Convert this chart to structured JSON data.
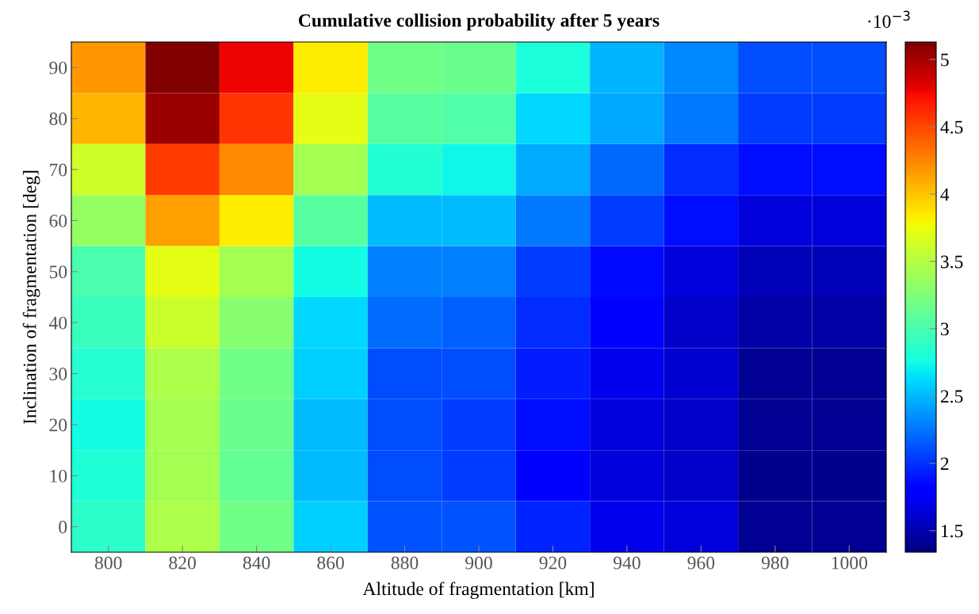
{
  "chart_data": {
    "type": "heatmap",
    "title": "Cumulative collision probability after 5 years",
    "xlabel": "Altitude of fragmentation [km]",
    "ylabel": "Inclination of fragmentation [deg]",
    "categories": [
      "800",
      "820",
      "840",
      "860",
      "880",
      "900",
      "920",
      "940",
      "960",
      "980",
      "1000"
    ],
    "y_categories": [
      "90",
      "80",
      "70",
      "60",
      "50",
      "40",
      "30",
      "20",
      "10",
      "0"
    ],
    "cells": [
      [
        4.18,
        5.13,
        4.77,
        3.83,
        3.18,
        3.15,
        2.8,
        2.48,
        2.32,
        2.1,
        2.1
      ],
      [
        4.06,
        5.04,
        4.58,
        3.71,
        3.06,
        3.04,
        2.62,
        2.44,
        2.26,
        2.05,
        2.05
      ],
      [
        3.61,
        4.54,
        4.24,
        3.42,
        2.83,
        2.74,
        2.46,
        2.2,
        1.99,
        1.87,
        1.87
      ],
      [
        3.35,
        4.14,
        3.83,
        3.06,
        2.52,
        2.52,
        2.26,
        2.05,
        1.87,
        1.64,
        1.64
      ],
      [
        3.0,
        3.71,
        3.42,
        2.76,
        2.29,
        2.29,
        2.05,
        1.85,
        1.64,
        1.52,
        1.52
      ],
      [
        2.93,
        3.6,
        3.29,
        2.62,
        2.22,
        2.17,
        1.99,
        1.8,
        1.58,
        1.46,
        1.46
      ],
      [
        2.84,
        3.47,
        3.18,
        2.59,
        2.1,
        2.1,
        1.93,
        1.71,
        1.61,
        1.4,
        1.4
      ],
      [
        2.76,
        3.42,
        3.15,
        2.52,
        2.1,
        2.05,
        1.87,
        1.64,
        1.58,
        1.4,
        1.4
      ],
      [
        2.81,
        3.42,
        3.13,
        2.52,
        2.1,
        2.05,
        1.8,
        1.64,
        1.58,
        1.39,
        1.39
      ],
      [
        2.87,
        3.47,
        3.18,
        2.59,
        2.13,
        2.13,
        1.96,
        1.71,
        1.64,
        1.4,
        1.4
      ]
    ],
    "clim": [
      1.34,
      5.13
    ],
    "cticks": [
      1.5,
      2,
      2.5,
      3,
      3.5,
      4,
      4.5,
      5
    ],
    "clabel": "·10$^{−3}$"
  }
}
